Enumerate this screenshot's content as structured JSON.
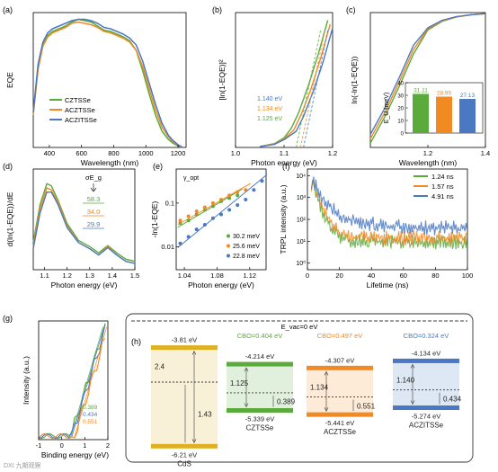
{
  "colors": {
    "green": "#5aaa3c",
    "orange": "#f28a24",
    "blue": "#4a78c2",
    "axis": "#000000",
    "dark": "#333333"
  },
  "panel_labels": [
    "(a)",
    "(b)",
    "(c)",
    "(d)",
    "(e)",
    "(f)",
    "(g)",
    "(h)"
  ],
  "chart_data": [
    {
      "type": "line",
      "panel": "(a)",
      "xlabel": "Wavelength (nm)",
      "ylabel": "EQE",
      "xlim": [
        300,
        1250
      ],
      "ylim": [
        0,
        1
      ],
      "xticks": [
        400,
        600,
        800,
        1000,
        1200
      ],
      "legend": {
        "placement": "lower-left"
      },
      "series": [
        {
          "name": "CZTSSe",
          "color": "green",
          "x": [
            300,
            330,
            360,
            390,
            420,
            460,
            500,
            540,
            580,
            620,
            660,
            700,
            740,
            780,
            820,
            860,
            900,
            940,
            980,
            1020,
            1060,
            1100,
            1140,
            1170,
            1200,
            1230
          ],
          "y": [
            0.25,
            0.6,
            0.76,
            0.83,
            0.86,
            0.88,
            0.9,
            0.93,
            0.95,
            0.94,
            0.93,
            0.9,
            0.87,
            0.86,
            0.84,
            0.82,
            0.79,
            0.72,
            0.57,
            0.4,
            0.24,
            0.12,
            0.06,
            0.03,
            0.01,
            0.0
          ]
        },
        {
          "name": "ACZTSSe",
          "color": "orange",
          "x": [
            300,
            330,
            360,
            390,
            420,
            460,
            500,
            540,
            580,
            620,
            660,
            700,
            740,
            780,
            820,
            860,
            900,
            940,
            980,
            1020,
            1060,
            1100,
            1140,
            1170,
            1200,
            1230
          ],
          "y": [
            0.24,
            0.58,
            0.75,
            0.82,
            0.85,
            0.87,
            0.89,
            0.92,
            0.93,
            0.92,
            0.91,
            0.89,
            0.86,
            0.85,
            0.83,
            0.81,
            0.78,
            0.72,
            0.6,
            0.44,
            0.28,
            0.15,
            0.08,
            0.04,
            0.015,
            0.0
          ]
        },
        {
          "name": "ACZITSSe",
          "color": "blue",
          "x": [
            300,
            330,
            360,
            390,
            420,
            460,
            500,
            540,
            580,
            620,
            660,
            700,
            740,
            780,
            820,
            860,
            900,
            940,
            980,
            1020,
            1060,
            1100,
            1140,
            1170,
            1200,
            1230
          ],
          "y": [
            0.26,
            0.62,
            0.78,
            0.85,
            0.88,
            0.9,
            0.92,
            0.94,
            0.95,
            0.95,
            0.94,
            0.92,
            0.89,
            0.88,
            0.86,
            0.84,
            0.81,
            0.76,
            0.64,
            0.48,
            0.32,
            0.18,
            0.09,
            0.05,
            0.02,
            0.0
          ]
        }
      ]
    },
    {
      "type": "line",
      "panel": "(b)",
      "xlabel": "Photon energy (eV)",
      "ylabel": "[ln(1-EQE)]²",
      "xlim": [
        1.0,
        1.2
      ],
      "xticks": [
        1.0,
        1.1,
        1.2
      ],
      "annotations": [
        {
          "text": "1.140 eV",
          "color": "blue"
        },
        {
          "text": "1.134 eV",
          "color": "orange"
        },
        {
          "text": "1.125 eV",
          "color": "green"
        }
      ],
      "series": [
        {
          "color": "green",
          "x": [
            1.05,
            1.08,
            1.1,
            1.115,
            1.13,
            1.15,
            1.17,
            1.19
          ],
          "y": [
            0.2,
            1.0,
            2.5,
            5,
            9,
            16,
            24,
            33
          ]
        },
        {
          "color": "orange",
          "x": [
            1.05,
            1.08,
            1.1,
            1.12,
            1.135,
            1.155,
            1.175,
            1.195
          ],
          "y": [
            0.2,
            0.9,
            2.2,
            4.5,
            8.5,
            15,
            23,
            32
          ]
        },
        {
          "color": "blue",
          "x": [
            1.05,
            1.08,
            1.1,
            1.125,
            1.14,
            1.16,
            1.18,
            1.2
          ],
          "y": [
            0.2,
            0.8,
            2.0,
            4.2,
            8,
            14.5,
            22,
            31
          ]
        }
      ]
    },
    {
      "type": "line",
      "panel": "(c)",
      "xlabel": "Wavelength (nm)",
      "ylabel": "ln(-ln(1-EQE))",
      "xlim": [
        1.0,
        1.4
      ],
      "xticks": [
        1.2,
        1.4
      ],
      "inset": {
        "type": "bar",
        "ylabel": "E_U (meV)",
        "ylim": [
          0,
          40
        ],
        "yticks": [
          0,
          10,
          20,
          30,
          40
        ],
        "values": [
          31.11,
          28.95,
          27.13
        ],
        "labels": [
          "31.11",
          "28.95",
          "27.13"
        ],
        "colors": [
          "green",
          "orange",
          "blue"
        ]
      },
      "series": [
        {
          "color": "green",
          "x": [
            1.0,
            1.05,
            1.1,
            1.15,
            1.2,
            1.25,
            1.3,
            1.35,
            1.4
          ],
          "y": [
            -5.0,
            -3.8,
            -2.4,
            -0.9,
            0.2,
            0.6,
            0.8,
            0.9,
            0.95
          ]
        },
        {
          "color": "orange",
          "x": [
            1.0,
            1.05,
            1.1,
            1.15,
            1.2,
            1.25,
            1.3,
            1.35,
            1.4
          ],
          "y": [
            -4.8,
            -3.6,
            -2.2,
            -0.7,
            0.25,
            0.62,
            0.8,
            0.9,
            0.95
          ]
        },
        {
          "color": "blue",
          "x": [
            1.0,
            1.05,
            1.1,
            1.15,
            1.2,
            1.25,
            1.3,
            1.35,
            1.4
          ],
          "y": [
            -4.6,
            -3.4,
            -2.0,
            -0.5,
            0.3,
            0.65,
            0.82,
            0.9,
            0.95
          ]
        }
      ]
    },
    {
      "type": "line",
      "panel": "(d)",
      "xlabel": "Photon energy (eV)",
      "ylabel": "d(ln(1-EQE))/dE",
      "xlim": [
        1.05,
        1.5
      ],
      "xticks": [
        1.1,
        1.2,
        1.3,
        1.4,
        1.5
      ],
      "header": "σE_g",
      "values_labels": [
        {
          "text": "58.3",
          "color": "green"
        },
        {
          "text": "34.0",
          "color": "orange"
        },
        {
          "text": "29.9",
          "color": "blue"
        }
      ],
      "series": [
        {
          "color": "green",
          "x": [
            1.05,
            1.08,
            1.11,
            1.13,
            1.16,
            1.2,
            1.25,
            1.3,
            1.34,
            1.38,
            1.42,
            1.46,
            1.5
          ],
          "y": [
            1.5,
            3.3,
            4.3,
            4.2,
            3.5,
            2.4,
            1.6,
            1.3,
            1.0,
            1.35,
            1.0,
            0.7,
            0.6
          ]
        },
        {
          "color": "orange",
          "x": [
            1.05,
            1.08,
            1.11,
            1.13,
            1.16,
            1.2,
            1.25,
            1.3,
            1.34,
            1.38,
            1.42,
            1.46,
            1.5
          ],
          "y": [
            1.3,
            3.1,
            4.1,
            4.0,
            3.4,
            2.3,
            1.5,
            1.2,
            0.9,
            1.3,
            0.9,
            0.6,
            0.5
          ]
        },
        {
          "color": "blue",
          "x": [
            1.05,
            1.08,
            1.11,
            1.13,
            1.16,
            1.2,
            1.25,
            1.3,
            1.34,
            1.38,
            1.42,
            1.46,
            1.5
          ],
          "y": [
            1.2,
            2.9,
            3.9,
            3.9,
            3.3,
            2.2,
            1.5,
            1.2,
            0.9,
            1.25,
            0.9,
            0.6,
            0.5
          ]
        }
      ]
    },
    {
      "type": "scatter",
      "panel": "(e)",
      "xlabel": "Photon energy (eV)",
      "ylabel": "-ln(1-EQE)",
      "xlim": [
        1.03,
        1.14
      ],
      "ylim_log": [
        0.003,
        0.6
      ],
      "yscale": "log",
      "xticks": [
        1.04,
        1.08,
        1.12
      ],
      "corner_label": "γ_opt",
      "legend": {
        "placement": "lower-right"
      },
      "series": [
        {
          "name": "30.2 meV",
          "color": "green",
          "x": [
            1.035,
            1.045,
            1.055,
            1.065,
            1.075,
            1.085,
            1.095,
            1.105
          ],
          "y": [
            0.035,
            0.04,
            0.055,
            0.07,
            0.085,
            0.11,
            0.13,
            0.15
          ]
        },
        {
          "name": "25.6 meV",
          "color": "orange",
          "x": [
            1.035,
            1.045,
            1.055,
            1.065,
            1.075,
            1.085,
            1.095,
            1.105,
            1.115
          ],
          "y": [
            0.04,
            0.05,
            0.065,
            0.08,
            0.1,
            0.12,
            0.15,
            0.18,
            0.2
          ]
        },
        {
          "name": "22.8 meV",
          "color": "blue",
          "x": [
            1.035,
            1.045,
            1.055,
            1.065,
            1.075,
            1.085,
            1.095,
            1.105,
            1.115,
            1.125,
            1.135
          ],
          "y": [
            0.012,
            0.017,
            0.025,
            0.032,
            0.045,
            0.055,
            0.07,
            0.09,
            0.12,
            0.2,
            0.32
          ]
        }
      ]
    },
    {
      "type": "line",
      "panel": "(f)",
      "xlabel": "Lifetime (ns)",
      "ylabel": "TRPL intensity (a.u.)",
      "xlim": [
        0,
        100
      ],
      "xticks": [
        0,
        20,
        40,
        60,
        80,
        100
      ],
      "yscale": "log",
      "yticks": [
        "10⁰",
        "10¹",
        "10²",
        "10³",
        "10⁴"
      ],
      "legend": {
        "placement": "top-right"
      },
      "series": [
        {
          "name": "1.24 ns",
          "color": "green",
          "x": [
            0,
            3,
            5,
            8,
            12,
            16,
            20,
            30,
            50,
            70,
            100
          ],
          "y": [
            1,
            10000,
            3000,
            600,
            120,
            40,
            20,
            15,
            14,
            13,
            13
          ]
        },
        {
          "name": "1.57 ns",
          "color": "orange",
          "x": [
            0,
            3,
            5,
            8,
            12,
            16,
            20,
            30,
            50,
            70,
            100
          ],
          "y": [
            1,
            10000,
            3500,
            800,
            200,
            70,
            35,
            22,
            20,
            20,
            20
          ]
        },
        {
          "name": "4.91 ns",
          "color": "blue",
          "x": [
            0,
            3,
            5,
            8,
            12,
            16,
            20,
            30,
            50,
            70,
            100
          ],
          "y": [
            1,
            10000,
            5000,
            2000,
            800,
            400,
            220,
            110,
            70,
            60,
            55
          ]
        }
      ]
    },
    {
      "type": "line",
      "panel": "(g)",
      "xlabel": "Binding energy (eV)",
      "ylabel": "Intensity (a.u.)",
      "xticks": [
        "-1",
        "0",
        "1",
        "2"
      ],
      "values_labels": [
        {
          "text": "0.389",
          "color": "green"
        },
        {
          "text": "0.434",
          "color": "blue"
        },
        {
          "text": "0.551",
          "color": "orange"
        }
      ]
    }
  ],
  "band_diagram": {
    "panel": "(h)",
    "evac": "E_vac=0 eV",
    "columns": [
      {
        "name": "CdS",
        "color": "#e0b020",
        "top_label": "-3.81 eV",
        "bottom_label": "-6.21 eV",
        "gap_label": "2.4",
        "inner_label": "1.43"
      },
      {
        "name": "CZTSSe",
        "color": "green",
        "cbo": "CBO=0.404 eV",
        "top_label": "-4.214 eV",
        "bottom_label": "-5.339 eV",
        "gap_label": "1.125",
        "inner_label": "0.389"
      },
      {
        "name": "ACZTSSe",
        "color": "orange",
        "cbo": "CBO=0.497 eV",
        "top_label": "-4.307 eV",
        "bottom_label": "-5.441 eV",
        "gap_label": "1.134",
        "inner_label": "0.551"
      },
      {
        "name": "ACZITSSe",
        "color": "blue",
        "cbo": "CBO=0.324 eV",
        "top_label": "-4.134 eV",
        "bottom_label": "-5.274 eV",
        "gap_label": "1.140",
        "inner_label": "0.434"
      }
    ]
  },
  "watermark": "DXI 九期观察"
}
